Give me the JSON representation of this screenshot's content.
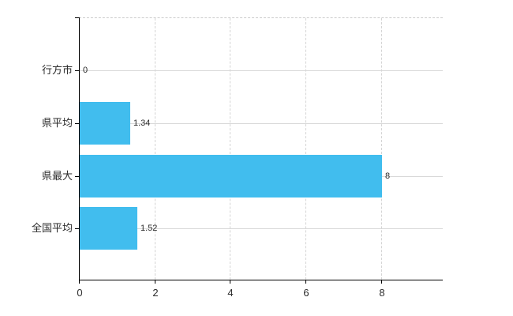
{
  "chart_data": {
    "type": "bar",
    "orientation": "horizontal",
    "title": "",
    "xlabel": "",
    "ylabel": "",
    "categories": [
      "行方市",
      "県平均",
      "県最大",
      "全国平均"
    ],
    "values": [
      0,
      1.34,
      8,
      1.52
    ],
    "value_labels": [
      "0",
      "1.34",
      "8",
      "1.52"
    ],
    "x_ticks": [
      0,
      2,
      4,
      6,
      8
    ],
    "x_tick_labels": [
      "0",
      "2",
      "4",
      "6",
      "8"
    ],
    "xlim": [
      0,
      9.61
    ],
    "grid": true,
    "legend_position": "none",
    "colors": {
      "bar": "#41bdee",
      "vertical_gridline": "#d4d4d4",
      "horizontal_gridline": "#d8d8d8",
      "axis": "#000000",
      "text": "#2b2b2b",
      "plot_top_border": "#cccccc",
      "background": "#ffffff"
    }
  }
}
